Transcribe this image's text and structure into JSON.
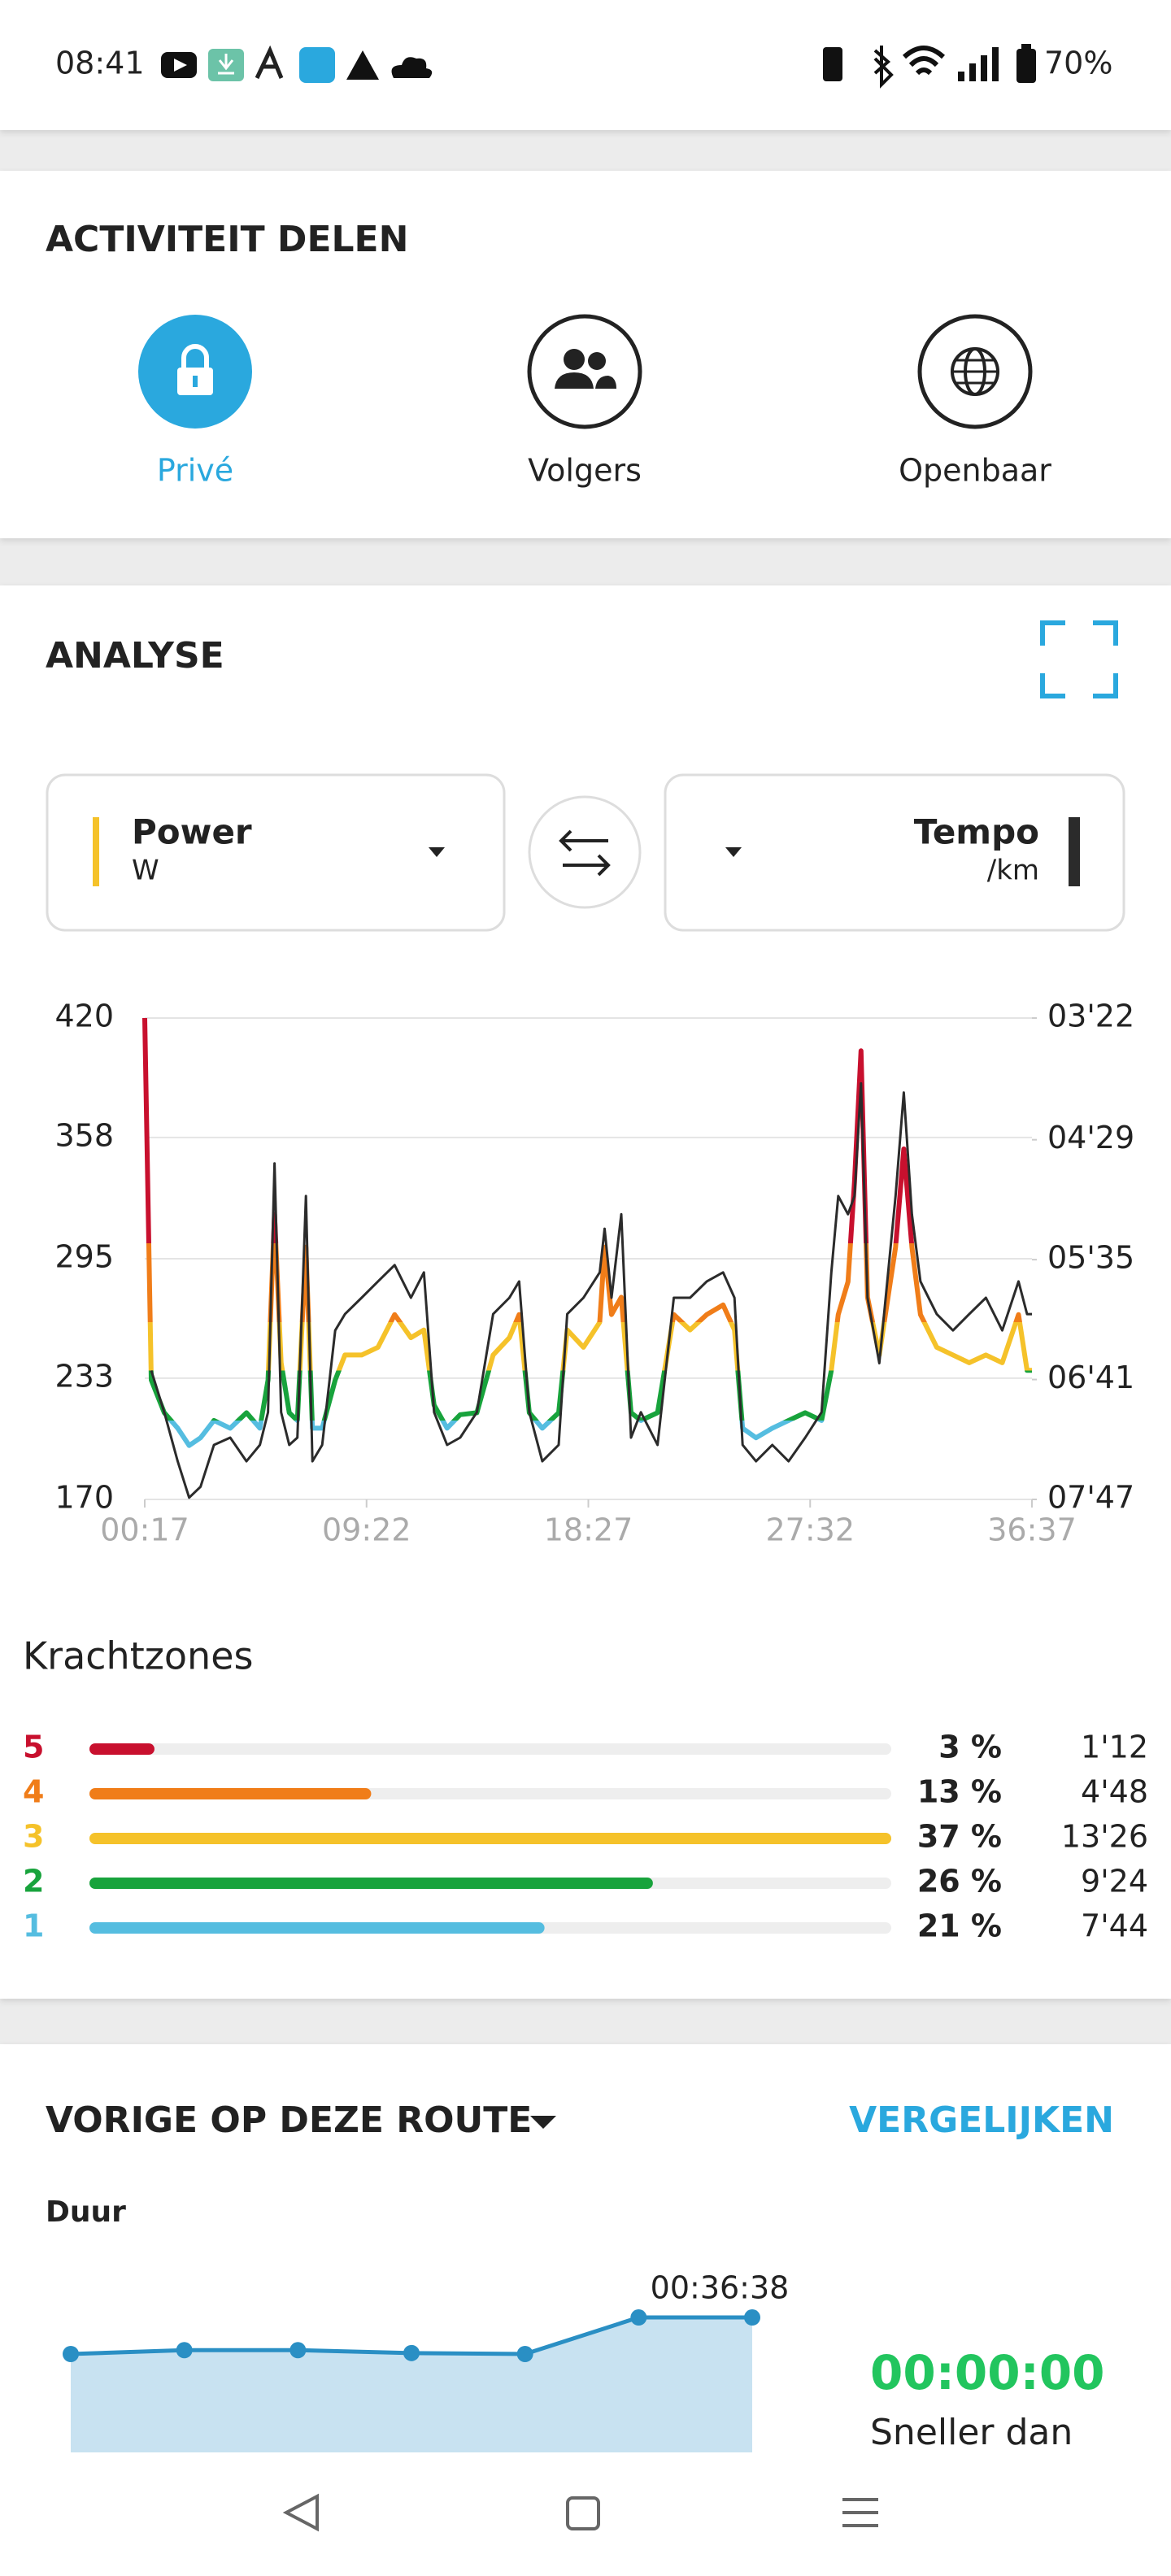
{
  "status_bar": {
    "time": "08:41",
    "battery": "70%"
  },
  "sharing": {
    "title": "ACTIVITEIT DELEN",
    "options": [
      "Privé",
      "Volgers",
      "Openbaar"
    ]
  },
  "analysis": {
    "title": "ANALYSE",
    "left_metric": {
      "name": "Power",
      "unit": "W"
    },
    "right_metric": {
      "name": "Tempo",
      "unit": "/km"
    }
  },
  "chart_data": [
    {
      "type": "line",
      "x": [
        17,
        33,
        65,
        98,
        126,
        154,
        187,
        227,
        267,
        300,
        320,
        336,
        352,
        372,
        392,
        413,
        429,
        453,
        485,
        509,
        550,
        590,
        631,
        671,
        703,
        728,
        760,
        792,
        833,
        873,
        913,
        937,
        962,
        994,
        1034,
        1055,
        1095,
        1135,
        1147,
        1164,
        1188,
        1212,
        1236,
        1277,
        1317,
        1357,
        1398,
        1438,
        1466,
        1486,
        1519,
        1559,
        1599,
        1640,
        1680,
        1704,
        1721,
        1745,
        1761,
        1777,
        1793,
        1822,
        1862,
        1882,
        1902,
        1923,
        1963,
        2003,
        2043,
        2084,
        2124,
        2164,
        2185,
        2197
      ],
      "series": [
        {
          "name": "Power",
          "values": [
            420,
            232,
            215,
            207,
            198,
            202,
            211,
            207,
            215,
            207,
            232,
            318,
            241,
            215,
            211,
            301,
            207,
            207,
            232,
            245,
            245,
            249,
            266,
            254,
            258,
            219,
            207,
            214,
            215,
            245,
            254,
            266,
            215,
            207,
            215,
            258,
            249,
            262,
            301,
            266,
            275,
            215,
            211,
            215,
            266,
            258,
            266,
            271,
            258,
            207,
            202,
            207,
            211,
            215,
            211,
            237,
            266,
            283,
            335,
            403,
            275,
            245,
            301,
            352,
            301,
            266,
            249,
            245,
            241,
            245,
            241,
            266,
            237,
            237
          ]
        },
        {
          "name": "Tempo",
          "color": "#2b2b2b",
          "axis": "y2",
          "values": [
            null,
            396,
            419,
            446,
            466,
            460,
            437,
            433,
            446,
            437,
            419,
            282,
            419,
            437,
            433,
            300,
            446,
            437,
            374,
            365,
            356,
            347,
            338,
            356,
            342,
            419,
            437,
            433,
            419,
            365,
            356,
            347,
            419,
            446,
            437,
            365,
            356,
            342,
            318,
            356,
            310,
            433,
            419,
            437,
            356,
            356,
            347,
            342,
            356,
            437,
            446,
            437,
            446,
            433,
            419,
            342,
            300,
            310,
            300,
            238,
            356,
            392,
            300,
            243,
            310,
            347,
            365,
            374,
            365,
            356,
            374,
            347,
            365,
            365
          ]
        }
      ],
      "zone_thresholds": [
        211,
        237,
        262,
        303
      ],
      "xlim": [
        17,
        2197
      ],
      "xticks": [
        {
          "value": 17,
          "label": "00:17"
        },
        {
          "value": 562,
          "label": "09:22"
        },
        {
          "value": 1107,
          "label": "18:27"
        },
        {
          "value": 1652,
          "label": "27:32"
        },
        {
          "value": 2197,
          "label": "36:37"
        }
      ],
      "ylim": [
        170,
        420
      ],
      "yticks": [
        170,
        233,
        295,
        358,
        420
      ],
      "y2lim": [
        467,
        202
      ],
      "y2ticks": [
        {
          "value": 467,
          "label": "07'47"
        },
        {
          "value": 401,
          "label": "06'41"
        },
        {
          "value": 335,
          "label": "05'35"
        },
        {
          "value": 269,
          "label": "04'29"
        },
        {
          "value": 202,
          "label": "03'22"
        }
      ],
      "grid": true
    },
    {
      "type": "line",
      "values": [
        2160,
        2164,
        2164,
        2161,
        2160,
        2198,
        2198
      ],
      "value_labels": [
        null,
        null,
        null,
        null,
        null,
        null,
        "00:36:38"
      ],
      "ylim": [
        2100,
        2220
      ],
      "color": "#2a8fc4"
    }
  ],
  "zones": {
    "title": "Krachtzones",
    "rows": [
      {
        "zone": "5",
        "color": "#c8102e",
        "percent": 3,
        "percent_label": "3 %",
        "time": "1'12"
      },
      {
        "zone": "4",
        "color": "#f07d19",
        "percent": 13,
        "percent_label": "13 %",
        "time": "4'48"
      },
      {
        "zone": "3",
        "color": "#f5c22a",
        "percent": 37,
        "percent_label": "37 %",
        "time": "13'26"
      },
      {
        "zone": "2",
        "color": "#18a33c",
        "percent": 26,
        "percent_label": "26 %",
        "time": "9'24"
      },
      {
        "zone": "1",
        "color": "#55bde0",
        "percent": 21,
        "percent_label": "21 %",
        "time": "7'44"
      }
    ]
  },
  "previous": {
    "title": "VORIGE OP DEZE ROUTE",
    "action": "VERGELIJKEN",
    "metric": "Duur",
    "result": "00:00:00",
    "result_caption": "Sneller dan"
  }
}
